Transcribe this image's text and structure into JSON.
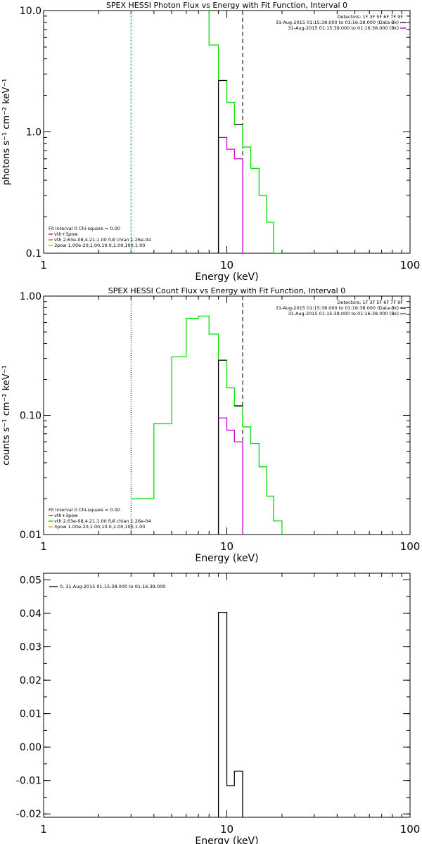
{
  "chart_data": [
    {
      "type": "line",
      "title": "SPEX HESSI Photon Flux vs Energy with Fit Function, Interval 0",
      "xlabel": "Energy (keV)",
      "ylabel": "photons s⁻¹ cm⁻² keV⁻¹",
      "xscale": "log",
      "yscale": "log",
      "xlim": [
        1,
        100
      ],
      "ylim": [
        0.1,
        10.0
      ],
      "xticks": [
        1,
        10,
        100
      ],
      "xtick_labels": [
        "1",
        "10",
        "100"
      ],
      "yticks": [
        0.1,
        1.0,
        10.0
      ],
      "ytick_labels": [
        "0.1",
        "1.0",
        "10.0"
      ],
      "detectors_label": "Detectors: 1F 3F 5F 6F 7F 9F",
      "time_legend": [
        {
          "text": "31-Aug-2015 01:15:38.000 to 01:16:38.000 (Data-Bk)",
          "color": "#000000"
        },
        {
          "text": "31-Aug-2015 01:15:38.000 to 01:16:38.000 (Bk)",
          "color": "#b000b0"
        }
      ],
      "fit_legend": [
        {
          "text": "Fit Interval  0   Chi-square = 0.00",
          "color": null
        },
        {
          "text": "vth+3pow",
          "color": "#d00000"
        },
        {
          "text": "vth 2.63e-08,4.21,1.00  full chian 1.26e-04",
          "color": "#00cc00"
        },
        {
          "text": "3pow 1.00e-20,1.00,10.0,1.00,100,1.00",
          "color": "#c8a000"
        }
      ],
      "vlines": [
        {
          "x": 3.0,
          "color": "#008800",
          "dash": "1,1"
        },
        {
          "x": 12.2,
          "color": "#000000",
          "dash": "6,4"
        }
      ],
      "series": [
        {
          "color": "#00e000",
          "steps": [
            [
              7.0,
              8.0,
              15.0
            ],
            [
              8.0,
              9.0,
              5.2
            ],
            [
              9.0,
              10.0,
              2.65
            ],
            [
              10.0,
              11.0,
              1.75
            ],
            [
              11.0,
              12.2,
              1.15
            ],
            [
              12.2,
              13.5,
              0.75
            ],
            [
              13.5,
              15.0,
              0.5
            ],
            [
              15.0,
              16.5,
              0.3
            ],
            [
              16.5,
              18.0,
              0.18
            ],
            [
              18.0,
              20.0,
              0.1
            ]
          ]
        },
        {
          "color": "#cc00cc",
          "steps": [
            [
              9.0,
              10.0,
              0.9
            ],
            [
              10.0,
              11.0,
              0.72
            ],
            [
              11.0,
              12.2,
              0.6
            ]
          ],
          "drop_start": true,
          "drop_end": true
        },
        {
          "color": "#000000",
          "steps": [
            [
              9.0,
              10.0,
              2.65
            ],
            [
              11.0,
              12.2,
              1.15
            ]
          ],
          "drop_start": true
        }
      ]
    },
    {
      "type": "line",
      "title": "SPEX HESSI Count Flux vs Energy with Fit Function, Interval 0",
      "xlabel": "Energy (keV)",
      "ylabel": "counts s⁻¹ cm⁻² keV⁻¹",
      "xscale": "log",
      "yscale": "log",
      "xlim": [
        1,
        100
      ],
      "ylim": [
        0.01,
        1.0
      ],
      "xticks": [
        1,
        10,
        100
      ],
      "xtick_labels": [
        "1",
        "10",
        "100"
      ],
      "yticks": [
        0.01,
        0.1,
        1.0
      ],
      "ytick_labels": [
        "0.01",
        "0.10",
        "1.00"
      ],
      "detectors_label": "Detectors: 1F 3F 5F 6F 7F 9F",
      "time_legend": [
        {
          "text": "31-Aug-2015 01:15:38.000 to 01:16:38.000 (Data-Bk)",
          "color": "#000000"
        },
        {
          "text": "31-Aug-2015 01:15:38.000 to 01:16:38.000 (Bk)",
          "color": "#b000b0"
        }
      ],
      "fit_legend": [
        {
          "text": "Fit Interval  0   Chi-square = 0.00",
          "color": null
        },
        {
          "text": "vth+3pow",
          "color": "#d00000"
        },
        {
          "text": "vth 2.63e-08,4.21,1.00  full chian 1.26e-04",
          "color": "#00cc00"
        },
        {
          "text": "3pow 1.00e-20,1.00,10.0,1.00,100,1.00",
          "color": "#c8a000"
        }
      ],
      "vlines": [
        {
          "x": 3.0,
          "color": "#000000",
          "dash": "1,2"
        },
        {
          "x": 12.2,
          "color": "#000000",
          "dash": "6,4"
        }
      ],
      "series": [
        {
          "color": "#00e000",
          "steps": [
            [
              3.0,
              4.0,
              0.02
            ],
            [
              4.0,
              5.0,
              0.085
            ],
            [
              5.0,
              6.0,
              0.31
            ],
            [
              6.0,
              7.0,
              0.65
            ],
            [
              7.0,
              8.0,
              0.68
            ],
            [
              8.0,
              9.0,
              0.48
            ],
            [
              9.0,
              10.0,
              0.29
            ],
            [
              10.0,
              11.0,
              0.17
            ],
            [
              11.0,
              12.2,
              0.12
            ],
            [
              12.2,
              13.5,
              0.08
            ],
            [
              13.5,
              15.0,
              0.058
            ],
            [
              15.0,
              16.5,
              0.037
            ],
            [
              16.5,
              18.0,
              0.021
            ],
            [
              18.0,
              20.0,
              0.013
            ]
          ],
          "drop_end": true
        },
        {
          "color": "#cc00cc",
          "steps": [
            [
              9.0,
              10.0,
              0.095
            ],
            [
              10.0,
              11.0,
              0.075
            ],
            [
              11.0,
              12.2,
              0.06
            ]
          ],
          "drop_start": true,
          "drop_end": true
        },
        {
          "color": "#000000",
          "steps": [
            [
              9.0,
              10.0,
              0.29
            ],
            [
              11.0,
              12.2,
              0.12
            ]
          ],
          "drop_start": true
        }
      ]
    },
    {
      "type": "line",
      "title": "",
      "xlabel": "Energy (keV)",
      "ylabel": "",
      "xscale": "log",
      "yscale": "linear",
      "xlim": [
        1,
        100
      ],
      "ylim": [
        -0.021,
        0.052
      ],
      "xticks": [
        1,
        10,
        100
      ],
      "xtick_labels": [
        "1",
        "10",
        "100"
      ],
      "yticks": [
        -0.02,
        -0.01,
        0.0,
        0.01,
        0.02,
        0.03,
        0.04,
        0.05
      ],
      "ytick_labels": [
        "-0.02",
        "-0.01",
        "0.00",
        "0.01",
        "0.02",
        "0.03",
        "0.04",
        "0.05"
      ],
      "detectors_label": "",
      "time_legend": [
        {
          "text": "0, 31-Aug-2015 01:15:38.000 to 01:16:38.000",
          "color": "#000000"
        }
      ],
      "fit_legend": [],
      "vlines": [],
      "series": [
        {
          "color": "#000000",
          "steps": [
            [
              9.0,
              10.0,
              0.0403
            ],
            [
              10.0,
              11.0,
              -0.0115
            ],
            [
              11.0,
              12.2,
              -0.0072
            ]
          ],
          "drop_start": true,
          "drop_end": true
        }
      ]
    }
  ]
}
